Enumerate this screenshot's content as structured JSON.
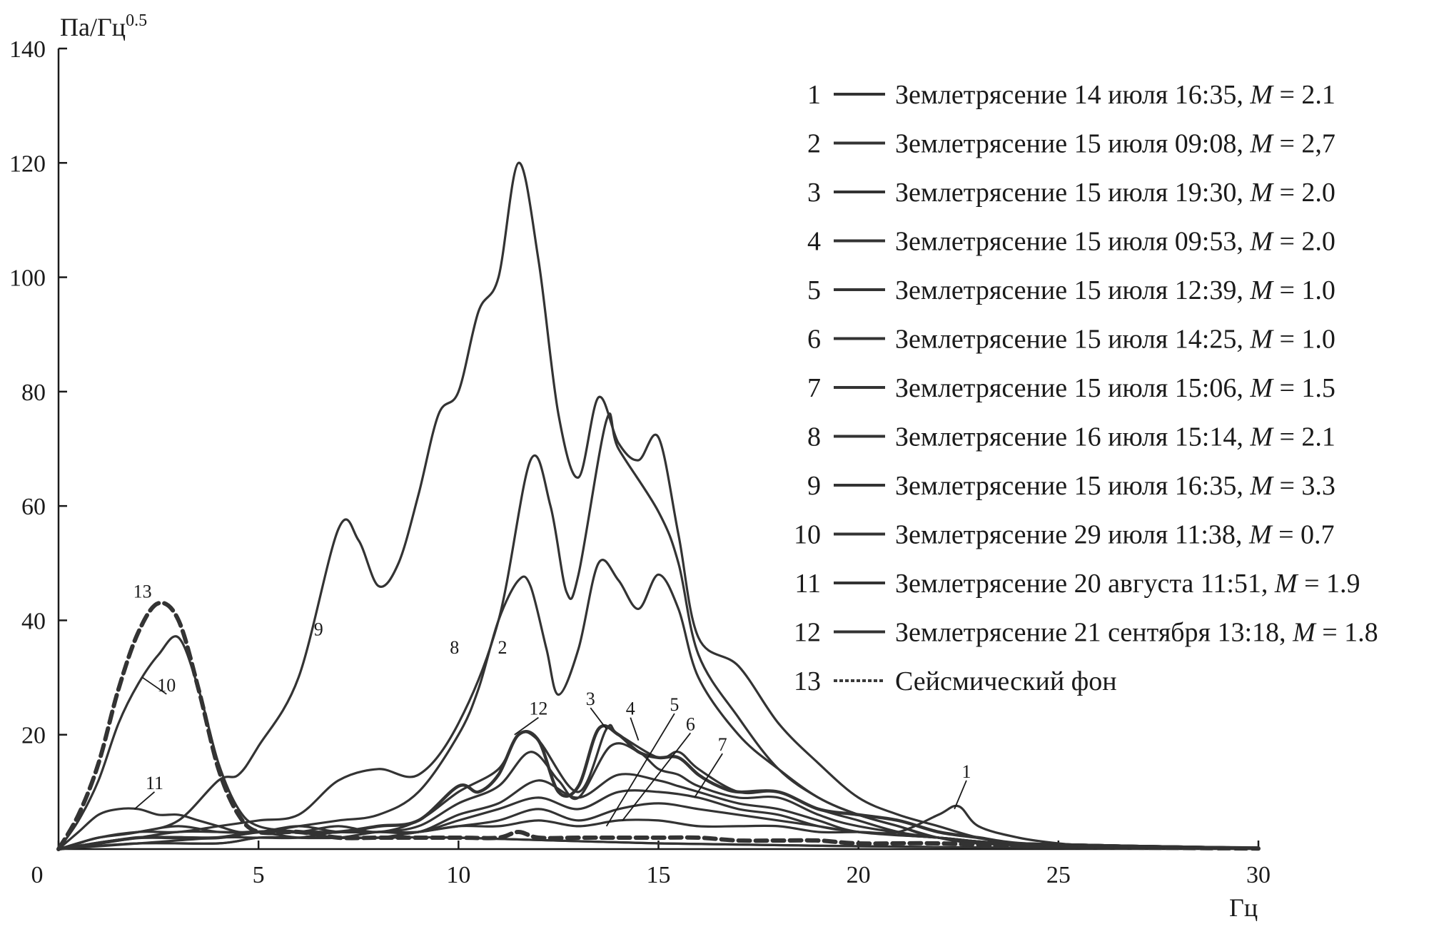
{
  "chart_data": {
    "type": "line",
    "title": "",
    "xlabel": "Гц",
    "ylabel": "Па/Гц",
    "ylabel_exponent": "0.5",
    "xlim": [
      0,
      30
    ],
    "ylim": [
      0,
      140
    ],
    "x_ticks": [
      "0",
      "5",
      "10",
      "15",
      "20",
      "25",
      "30"
    ],
    "y_ticks": [
      "20",
      "40",
      "60",
      "80",
      "100",
      "120",
      "140"
    ],
    "grid": false,
    "legend_position": "top-right",
    "series": [
      {
        "id": "1",
        "name": "Землетрясение 14 июля 16:35, M = 2.1",
        "date_text": "Землетрясение 14 июля 16:35, ",
        "m_symbol": "M",
        "m_value": " = 2.1",
        "color": "#333333",
        "dashed": false,
        "width": 3.2,
        "x": [
          0,
          0.5,
          1,
          2,
          3,
          4,
          5,
          6,
          7,
          8,
          9,
          10,
          11,
          12,
          13,
          14,
          15,
          16,
          17,
          18,
          19,
          20,
          21,
          22,
          22.5,
          23,
          24,
          25,
          26,
          28,
          30
        ],
        "y": [
          0,
          1,
          2,
          3,
          4,
          3,
          3,
          4,
          3,
          3,
          3,
          4,
          4,
          5,
          4,
          5,
          5,
          4,
          4,
          4,
          3,
          3,
          3,
          6,
          7.5,
          4,
          2,
          1,
          0.5,
          0.3,
          0.2
        ]
      },
      {
        "id": "2",
        "name": "Землетрясение 15 июля 09:08, M = 2,7",
        "date_text": "Землетрясение 15 июля 09:08, ",
        "m_symbol": "M",
        "m_value": " = 2,7",
        "color": "#333333",
        "dashed": false,
        "width": 3.2,
        "x": [
          0,
          1,
          2,
          3,
          4,
          5,
          6,
          7,
          8,
          9,
          10,
          10.5,
          11,
          11.5,
          11.8,
          12.2,
          12.5,
          13,
          13.5,
          14,
          14.5,
          15,
          15.5,
          16,
          17,
          18,
          19,
          20,
          21,
          22,
          23,
          25,
          30
        ],
        "y": [
          0,
          1,
          2,
          3,
          3,
          3,
          4,
          5,
          6,
          10,
          20,
          28,
          40,
          47,
          46,
          35,
          27,
          35,
          50,
          47,
          42,
          48,
          42,
          30,
          20,
          14,
          9,
          6,
          4,
          2,
          1,
          0.5,
          0.2
        ]
      },
      {
        "id": "3",
        "name": "Землетрясение 15 июля 19:30, M = 2.0",
        "date_text": "Землетрясение 15 июля 19:30, ",
        "m_symbol": "M",
        "m_value": " = 2.0",
        "color": "#333333",
        "dashed": false,
        "width": 3.2,
        "x": [
          0,
          2,
          4,
          5,
          6,
          7,
          8,
          9,
          10,
          11,
          11.5,
          12,
          13,
          13.7,
          14,
          15,
          15.5,
          16,
          17,
          18,
          19,
          20,
          21,
          22,
          24,
          30
        ],
        "y": [
          0,
          2,
          2,
          3,
          3,
          4,
          3,
          5,
          10,
          14,
          20,
          19,
          10,
          21,
          20,
          16,
          17,
          14,
          10,
          10,
          7,
          5,
          3,
          2,
          1,
          0.2
        ]
      },
      {
        "id": "4",
        "name": "Землетрясение 15 июля 09:53, M = 2.0",
        "date_text": "Землетрясение 15 июля 09:53, ",
        "m_symbol": "M",
        "m_value": " = 2.0",
        "color": "#333333",
        "dashed": false,
        "width": 3.2,
        "x": [
          0,
          2,
          4,
          5,
          6,
          7,
          8,
          9,
          10,
          11,
          11.8,
          12.5,
          13,
          13.8,
          14.5,
          15,
          15.5,
          16,
          17,
          18,
          19,
          20,
          22,
          24,
          30
        ],
        "y": [
          0,
          2,
          2,
          3,
          3,
          3,
          3,
          4,
          8,
          11,
          17,
          12,
          9,
          18,
          17,
          14,
          13,
          11,
          9,
          9,
          6,
          4,
          2,
          1,
          0.2
        ]
      },
      {
        "id": "5",
        "name": "Землетрясение 15 июля 12:39, M = 1.0",
        "date_text": "Землетрясение 15 июля 12:39, ",
        "m_symbol": "M",
        "m_value": " = 1.0",
        "color": "#333333",
        "dashed": false,
        "width": 3.2,
        "x": [
          0,
          2,
          4,
          5,
          6,
          7,
          8,
          9,
          10,
          11,
          12,
          13,
          14,
          15,
          15.5,
          16,
          17,
          18,
          19,
          20,
          22,
          24,
          30
        ],
        "y": [
          0,
          1,
          2,
          2,
          2,
          3,
          3,
          3,
          6,
          8,
          12,
          9,
          13,
          12,
          11,
          10,
          8,
          7,
          5,
          3,
          2,
          1,
          0.2
        ]
      },
      {
        "id": "6",
        "name": "Землетрясение 15 июля 14:25, M = 1.0",
        "date_text": "Землетрясение 15 июля 14:25, ",
        "m_symbol": "M",
        "m_value": " = 1.0",
        "color": "#333333",
        "dashed": false,
        "width": 3.2,
        "x": [
          0,
          2,
          4,
          5,
          6,
          7,
          8,
          9,
          10,
          11,
          12,
          13,
          14,
          15,
          16,
          17,
          18,
          19,
          20,
          22,
          24,
          30
        ],
        "y": [
          0,
          1,
          1,
          2,
          2,
          2,
          3,
          3,
          5,
          7,
          9,
          7,
          10,
          10,
          9,
          7,
          6,
          4,
          3,
          2,
          1,
          0.2
        ]
      },
      {
        "id": "7",
        "name": "Землетрясение 15 июля 15:06, M = 1.5",
        "date_text": "Землетрясение 15 июля 15:06, ",
        "m_symbol": "M",
        "m_value": " = 1.5",
        "color": "#333333",
        "dashed": false,
        "width": 3.2,
        "x": [
          0,
          2,
          4,
          5,
          6,
          7,
          8,
          9,
          10,
          11,
          12,
          13,
          14,
          15,
          16,
          17,
          18,
          19,
          20,
          22,
          24,
          30
        ],
        "y": [
          0,
          1,
          1,
          2,
          2,
          2,
          2,
          3,
          4,
          5,
          7,
          5,
          7,
          8,
          7,
          6,
          5,
          4,
          3,
          2,
          1,
          0.2
        ]
      },
      {
        "id": "8",
        "name": "Землетрясение 16 июля 15:14, M = 2.1",
        "date_text": "Землетрясение 16 июля 15:14, ",
        "m_symbol": "M",
        "m_value": " = 2.1",
        "color": "#333333",
        "dashed": false,
        "width": 3.2,
        "x": [
          0,
          1,
          2,
          3,
          4,
          5,
          6,
          7,
          8,
          9,
          10,
          11,
          11.8,
          12.3,
          12.7,
          13,
          13.7,
          14,
          15,
          15.5,
          16,
          17,
          18,
          19,
          20,
          21,
          22,
          24,
          30
        ],
        "y": [
          0,
          2,
          3,
          3,
          4,
          5,
          6,
          12,
          14,
          13,
          22,
          40,
          68,
          60,
          45,
          48,
          75,
          70,
          59,
          50,
          34,
          23,
          14,
          9,
          6,
          4,
          2,
          1,
          0.2
        ]
      },
      {
        "id": "9",
        "name": "Землетрясение 15 июля 16:35, M = 3.3",
        "date_text": "Землетрясение 15 июля 16:35, ",
        "m_symbol": "M",
        "m_value": " = 3.3",
        "color": "#333333",
        "dashed": false,
        "width": 3.2,
        "x": [
          0,
          0.5,
          1,
          2,
          3,
          4,
          4.5,
          5,
          6,
          7,
          7.5,
          8,
          8.5,
          9,
          9.5,
          10,
          10.5,
          11,
          11.5,
          12,
          12.5,
          13,
          13.5,
          14,
          14.5,
          15,
          15.5,
          16,
          17,
          18,
          19,
          20,
          21,
          22,
          23,
          24,
          25,
          26,
          30
        ],
        "y": [
          0,
          1,
          2,
          3,
          5,
          12,
          13,
          18,
          30,
          56,
          54,
          46,
          50,
          62,
          76,
          80,
          94,
          100,
          120,
          103,
          76,
          65,
          79,
          71,
          68,
          72,
          55,
          37,
          32,
          22,
          15,
          9,
          6,
          4,
          2,
          1,
          0.5,
          0.3,
          0.2
        ]
      },
      {
        "id": "10",
        "name": "Землетрясение 29 июля 11:38, M = 0.7",
        "date_text": "Землетрясение 29 июля 11:38, ",
        "m_symbol": "M",
        "m_value": " = 0.7",
        "color": "#333333",
        "dashed": false,
        "width": 3.2,
        "x": [
          0,
          0.5,
          1,
          1.5,
          2,
          2.5,
          3,
          3.5,
          4,
          4.5,
          5,
          6,
          7,
          8,
          10,
          15,
          20,
          25,
          30
        ],
        "y": [
          0,
          5,
          12,
          22,
          29,
          34,
          37,
          28,
          15,
          7,
          4,
          3,
          2,
          2,
          2,
          1,
          0.5,
          0.2,
          0.1
        ]
      },
      {
        "id": "11",
        "name": "Землетрясение 20 августа 11:51, M = 1.9",
        "date_text": "Землетрясение 20 августа 11:51, ",
        "m_symbol": "M",
        "m_value": " = 1.9",
        "color": "#333333",
        "dashed": false,
        "width": 3.2,
        "x": [
          0,
          0.5,
          1,
          1.5,
          2,
          2.5,
          3,
          3.5,
          4,
          4.5,
          5,
          6,
          7,
          8,
          10,
          15,
          20,
          25,
          30
        ],
        "y": [
          0,
          3,
          6,
          7,
          7,
          6,
          6,
          5,
          4,
          3,
          3,
          2,
          2,
          2,
          2,
          1,
          0.5,
          0.2,
          0.1
        ]
      },
      {
        "id": "12",
        "name": "Землетрясение 21 сентября 13:18, M = 1.8",
        "date_text": "Землетрясение 21 сентября 13:18, ",
        "m_symbol": "M",
        "m_value": " = 1.8",
        "color": "#333333",
        "dashed": false,
        "width": 4.5,
        "x": [
          0,
          1,
          2,
          3,
          4,
          5,
          6,
          7,
          8,
          9,
          10,
          10.5,
          11,
          11.5,
          12,
          12.5,
          13,
          13.5,
          14,
          14.5,
          15,
          15.5,
          16,
          16.5,
          17,
          18,
          19,
          20,
          21,
          22,
          23,
          24,
          26,
          30
        ],
        "y": [
          0,
          1,
          2,
          2,
          2,
          3,
          3,
          3,
          4,
          5,
          11,
          10,
          13,
          20,
          19,
          10,
          11,
          21,
          20,
          17,
          16,
          16,
          13,
          11,
          10,
          10,
          7,
          6,
          5,
          3,
          2,
          1,
          0.5,
          0.2
        ]
      },
      {
        "id": "13",
        "name": "Сейсмический фон",
        "date_text": "Сейсмический фон",
        "m_symbol": "",
        "m_value": "",
        "color": "#3a3a3a",
        "dashed": true,
        "width": 6,
        "x": [
          0,
          0.5,
          1,
          1.5,
          2,
          2.5,
          3,
          3.5,
          4,
          4.5,
          5,
          6,
          7,
          8,
          9,
          10,
          11,
          11.5,
          12,
          13,
          14,
          15,
          16,
          17,
          18,
          19,
          20,
          22,
          24,
          26,
          28,
          30
        ],
        "y": [
          0,
          6,
          15,
          28,
          38,
          43,
          40,
          28,
          14,
          6,
          3,
          3,
          2,
          2,
          2,
          2,
          2,
          3,
          2,
          2,
          2,
          2,
          2,
          1.5,
          1.5,
          1.5,
          1,
          1,
          0.5,
          0.3,
          0.2,
          0.1
        ]
      }
    ],
    "curve_labels": [
      {
        "text": "1",
        "x": 22.7,
        "y": 12.5,
        "to_x": 22.4,
        "to_y": 7
      },
      {
        "text": "2",
        "x": 11.1,
        "y": 34.2,
        "to_x": null,
        "to_y": null
      },
      {
        "text": "3",
        "x": 13.3,
        "y": 25.2,
        "to_x": 13.7,
        "to_y": 21
      },
      {
        "text": "4",
        "x": 14.3,
        "y": 23.5,
        "to_x": 14.5,
        "to_y": 19
      },
      {
        "text": "5",
        "x": 15.4,
        "y": 24.2,
        "to_x": 13.7,
        "to_y": 4
      },
      {
        "text": "6",
        "x": 15.8,
        "y": 20.8,
        "to_x": 14.1,
        "to_y": 5
      },
      {
        "text": "7",
        "x": 16.6,
        "y": 17.2,
        "to_x": 15.9,
        "to_y": 9
      },
      {
        "text": "8",
        "x": 9.9,
        "y": 34.2,
        "to_x": null,
        "to_y": null
      },
      {
        "text": "9",
        "x": 6.5,
        "y": 37.4,
        "to_x": null,
        "to_y": null
      },
      {
        "text": "10",
        "x": 2.7,
        "y": 27.6,
        "to_x": 2.1,
        "to_y": 30
      },
      {
        "text": "11",
        "x": 2.4,
        "y": 10.5,
        "to_x": 1.9,
        "to_y": 7
      },
      {
        "text": "12",
        "x": 12.0,
        "y": 23.5,
        "to_x": 11.4,
        "to_y": 20
      },
      {
        "text": "13",
        "x": 2.1,
        "y": 44.0,
        "to_x": null,
        "to_y": null
      }
    ]
  }
}
